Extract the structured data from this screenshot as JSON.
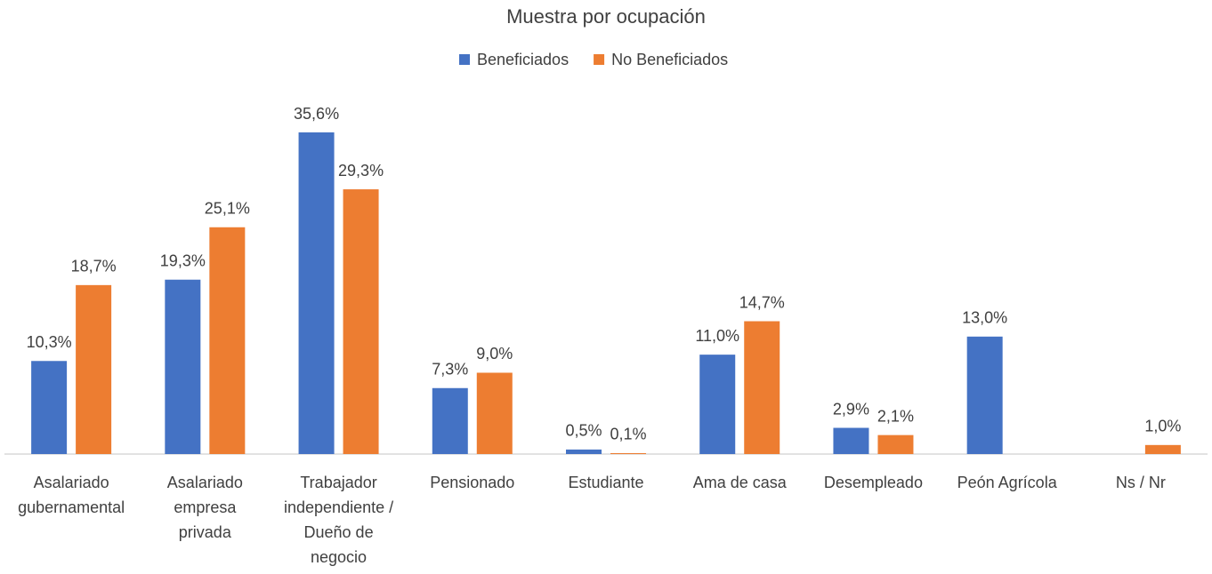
{
  "chart_data": {
    "type": "bar",
    "title": "Muestra por ocupación",
    "categories": [
      "Asalariado gubernamental",
      "Asalariado empresa privada",
      "Trabajador independiente / Dueño de negocio",
      "Pensionado",
      "Estudiante",
      "Ama de casa",
      "Desempleado",
      "Peón Agrícola",
      "Ns / Nr"
    ],
    "series": [
      {
        "name": "Beneficiados",
        "color": "#4472c4",
        "values": [
          10.3,
          19.3,
          35.6,
          7.3,
          0.5,
          11.0,
          2.9,
          13.0,
          null
        ],
        "value_labels": [
          "10,3%",
          "19,3%",
          "35,6%",
          "7,3%",
          "0,5%",
          "11,0%",
          "2,9%",
          "13,0%",
          null
        ]
      },
      {
        "name": "No Beneficiados",
        "color": "#ed7d31",
        "values": [
          18.7,
          25.1,
          29.3,
          9.0,
          0.1,
          14.7,
          2.1,
          null,
          1.0
        ],
        "value_labels": [
          "18,7%",
          "25,1%",
          "29,3%",
          "9,0%",
          "0,1%",
          "14,7%",
          "2,1%",
          null,
          "1,0%"
        ]
      }
    ],
    "legend": "top"
  }
}
